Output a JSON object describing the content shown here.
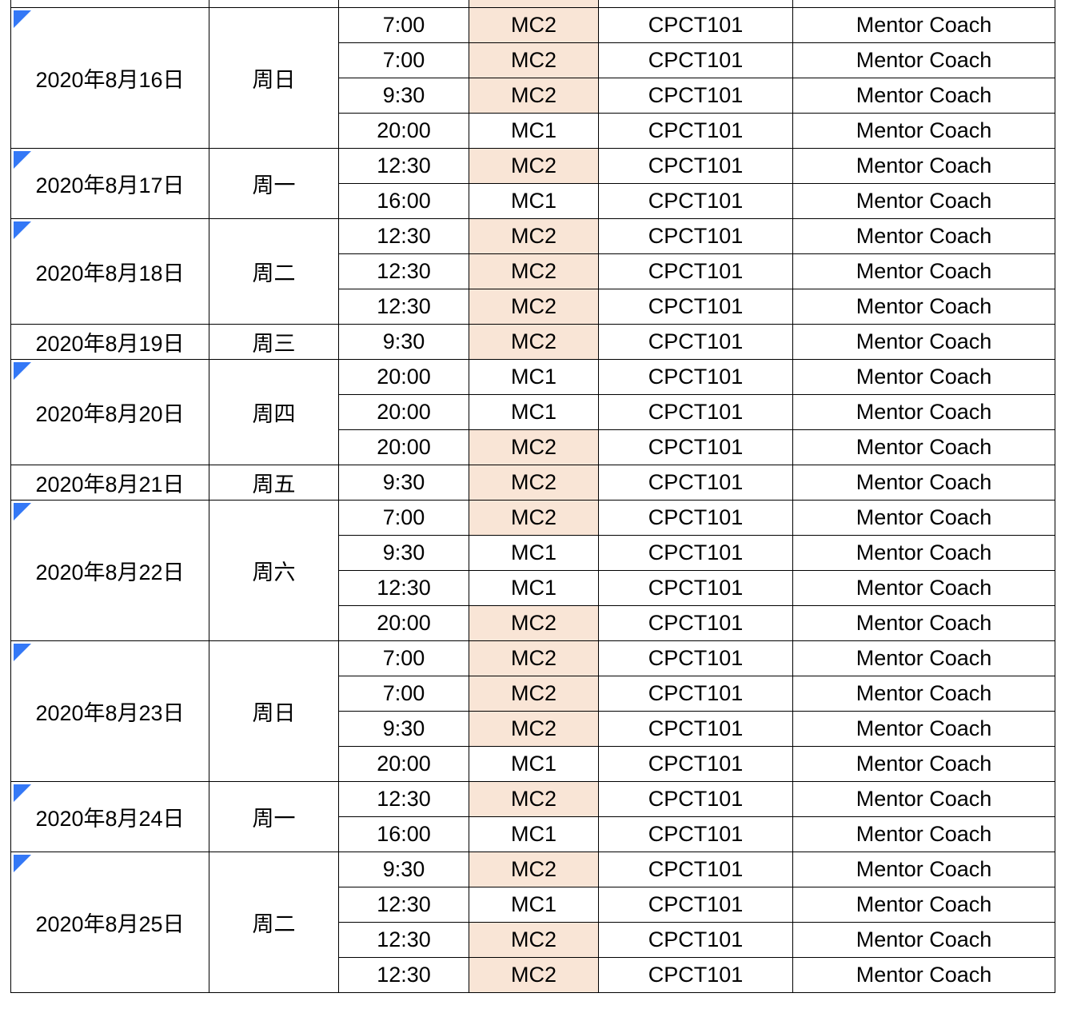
{
  "highlight_color": "#f9e5d6",
  "comment_marker_color": "#3478f6",
  "highlighted_value": "MC2",
  "groups": [
    {
      "date": "2020年8月16日",
      "weekday": "周日",
      "marker": true,
      "sessions": [
        {
          "time": "7:00",
          "mc": "MC2",
          "code": "CPCT101",
          "role": "Mentor Coach"
        },
        {
          "time": "7:00",
          "mc": "MC2",
          "code": "CPCT101",
          "role": "Mentor Coach"
        },
        {
          "time": "9:30",
          "mc": "MC2",
          "code": "CPCT101",
          "role": "Mentor Coach"
        },
        {
          "time": "20:00",
          "mc": "MC1",
          "code": "CPCT101",
          "role": "Mentor Coach"
        }
      ]
    },
    {
      "date": "2020年8月17日",
      "weekday": "周一",
      "marker": true,
      "sessions": [
        {
          "time": "12:30",
          "mc": "MC2",
          "code": "CPCT101",
          "role": "Mentor Coach"
        },
        {
          "time": "16:00",
          "mc": "MC1",
          "code": "CPCT101",
          "role": "Mentor Coach"
        }
      ]
    },
    {
      "date": "2020年8月18日",
      "weekday": "周二",
      "marker": true,
      "sessions": [
        {
          "time": "12:30",
          "mc": "MC2",
          "code": "CPCT101",
          "role": "Mentor Coach"
        },
        {
          "time": "12:30",
          "mc": "MC2",
          "code": "CPCT101",
          "role": "Mentor Coach"
        },
        {
          "time": "12:30",
          "mc": "MC2",
          "code": "CPCT101",
          "role": "Mentor Coach"
        }
      ]
    },
    {
      "date": "2020年8月19日",
      "weekday": "周三",
      "marker": false,
      "sessions": [
        {
          "time": "9:30",
          "mc": "MC2",
          "code": "CPCT101",
          "role": "Mentor Coach"
        }
      ]
    },
    {
      "date": "2020年8月20日",
      "weekday": "周四",
      "marker": true,
      "sessions": [
        {
          "time": "20:00",
          "mc": "MC1",
          "code": "CPCT101",
          "role": "Mentor Coach"
        },
        {
          "time": "20:00",
          "mc": "MC1",
          "code": "CPCT101",
          "role": "Mentor Coach"
        },
        {
          "time": "20:00",
          "mc": "MC2",
          "code": "CPCT101",
          "role": "Mentor Coach"
        }
      ]
    },
    {
      "date": "2020年8月21日",
      "weekday": "周五",
      "marker": false,
      "sessions": [
        {
          "time": "9:30",
          "mc": "MC2",
          "code": "CPCT101",
          "role": "Mentor Coach"
        }
      ]
    },
    {
      "date": "2020年8月22日",
      "weekday": "周六",
      "marker": true,
      "sessions": [
        {
          "time": "7:00",
          "mc": "MC2",
          "code": "CPCT101",
          "role": "Mentor Coach"
        },
        {
          "time": "9:30",
          "mc": "MC1",
          "code": "CPCT101",
          "role": "Mentor Coach"
        },
        {
          "time": "12:30",
          "mc": "MC1",
          "code": "CPCT101",
          "role": "Mentor Coach"
        },
        {
          "time": "20:00",
          "mc": "MC2",
          "code": "CPCT101",
          "role": "Mentor Coach"
        }
      ]
    },
    {
      "date": "2020年8月23日",
      "weekday": "周日",
      "marker": true,
      "sessions": [
        {
          "time": "7:00",
          "mc": "MC2",
          "code": "CPCT101",
          "role": "Mentor Coach"
        },
        {
          "time": "7:00",
          "mc": "MC2",
          "code": "CPCT101",
          "role": "Mentor Coach"
        },
        {
          "time": "9:30",
          "mc": "MC2",
          "code": "CPCT101",
          "role": "Mentor Coach"
        },
        {
          "time": "20:00",
          "mc": "MC1",
          "code": "CPCT101",
          "role": "Mentor Coach"
        }
      ]
    },
    {
      "date": "2020年8月24日",
      "weekday": "周一",
      "marker": true,
      "sessions": [
        {
          "time": "12:30",
          "mc": "MC2",
          "code": "CPCT101",
          "role": "Mentor Coach"
        },
        {
          "time": "16:00",
          "mc": "MC1",
          "code": "CPCT101",
          "role": "Mentor Coach"
        }
      ]
    },
    {
      "date": "2020年8月25日",
      "weekday": "周二",
      "marker": true,
      "sessions": [
        {
          "time": "9:30",
          "mc": "MC2",
          "code": "CPCT101",
          "role": "Mentor Coach"
        },
        {
          "time": "12:30",
          "mc": "MC1",
          "code": "CPCT101",
          "role": "Mentor Coach"
        },
        {
          "time": "12:30",
          "mc": "MC2",
          "code": "CPCT101",
          "role": "Mentor Coach"
        },
        {
          "time": "12:30",
          "mc": "MC2",
          "code": "CPCT101",
          "role": "Mentor Coach"
        }
      ]
    }
  ]
}
